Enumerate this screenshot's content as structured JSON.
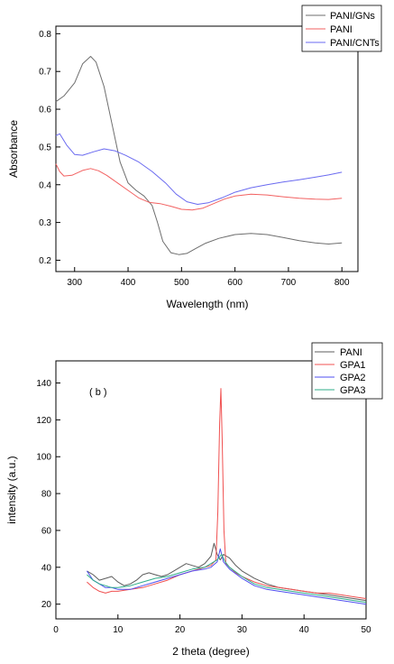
{
  "chart_data": [
    {
      "type": "line",
      "title": "",
      "xlabel": "Wavelength (nm)",
      "ylabel": "Absorbance",
      "xlim": [
        265,
        830
      ],
      "ylim": [
        0.17,
        0.82
      ],
      "x_ticks": [
        300,
        400,
        500,
        600,
        700,
        800
      ],
      "y_ticks": [
        0.2,
        0.3,
        0.4,
        0.5,
        0.6,
        0.7,
        0.8
      ],
      "x_tick_labels": [
        "300",
        "400",
        "500",
        "600",
        "700",
        "800"
      ],
      "y_tick_labels": [
        "0.2",
        "0.3",
        "0.4",
        "0.5",
        "0.6",
        "0.7",
        "0.8"
      ],
      "legend": "top-right",
      "grid": false,
      "series": [
        {
          "name": "PANI/GNs",
          "color": "#6e6e6e",
          "x": [
            265,
            280,
            300,
            315,
            330,
            340,
            355,
            370,
            385,
            400,
            415,
            430,
            445,
            455,
            465,
            480,
            495,
            510,
            525,
            545,
            570,
            600,
            630,
            660,
            690,
            720,
            750,
            775,
            800
          ],
          "y": [
            0.62,
            0.635,
            0.67,
            0.72,
            0.74,
            0.725,
            0.66,
            0.56,
            0.46,
            0.405,
            0.385,
            0.37,
            0.345,
            0.3,
            0.25,
            0.22,
            0.215,
            0.218,
            0.23,
            0.245,
            0.258,
            0.268,
            0.271,
            0.268,
            0.26,
            0.252,
            0.246,
            0.243,
            0.246
          ]
        },
        {
          "name": "PANI",
          "color": "#f26161",
          "x": [
            265,
            272,
            280,
            295,
            315,
            330,
            345,
            360,
            380,
            400,
            420,
            440,
            460,
            480,
            500,
            520,
            540,
            560,
            580,
            600,
            630,
            660,
            690,
            720,
            750,
            775,
            800
          ],
          "y": [
            0.455,
            0.435,
            0.423,
            0.425,
            0.438,
            0.443,
            0.437,
            0.425,
            0.405,
            0.385,
            0.365,
            0.353,
            0.35,
            0.343,
            0.335,
            0.333,
            0.338,
            0.35,
            0.362,
            0.37,
            0.375,
            0.373,
            0.368,
            0.364,
            0.362,
            0.361,
            0.364
          ]
        },
        {
          "name": "PANI/CNTs",
          "color": "#6a6af0",
          "x": [
            265,
            272,
            285,
            300,
            315,
            335,
            355,
            375,
            395,
            420,
            445,
            470,
            490,
            510,
            530,
            550,
            575,
            600,
            630,
            660,
            690,
            720,
            750,
            775,
            800
          ],
          "y": [
            0.53,
            0.535,
            0.505,
            0.48,
            0.478,
            0.487,
            0.495,
            0.49,
            0.478,
            0.46,
            0.435,
            0.405,
            0.375,
            0.355,
            0.348,
            0.352,
            0.365,
            0.38,
            0.392,
            0.4,
            0.407,
            0.413,
            0.42,
            0.426,
            0.433
          ]
        }
      ]
    },
    {
      "type": "line",
      "title": "",
      "annotation": "( b )",
      "xlabel": "2 theta (degree)",
      "ylabel": "intensity (a.u.)",
      "xlim": [
        0,
        50
      ],
      "ylim": [
        12,
        152
      ],
      "x_ticks": [
        0,
        10,
        20,
        30,
        40,
        50
      ],
      "y_ticks": [
        20,
        40,
        60,
        80,
        100,
        120,
        140
      ],
      "x_tick_labels": [
        "0",
        "10",
        "20",
        "30",
        "40",
        "50"
      ],
      "y_tick_labels": [
        "20",
        "40",
        "60",
        "80",
        "100",
        "120",
        "140"
      ],
      "legend": "top-right",
      "grid": false,
      "series": [
        {
          "name": "PANI",
          "color": "#5c5c5c",
          "x": [
            5,
            6,
            7,
            8,
            9,
            10,
            11,
            12,
            13,
            14,
            15,
            16,
            17,
            18,
            19,
            20,
            21,
            22,
            23,
            24,
            25,
            25.5,
            26,
            26.5,
            27,
            27.5,
            28,
            29,
            30,
            32,
            34,
            36,
            38,
            40,
            42,
            44,
            46,
            48,
            50
          ],
          "y": [
            38,
            36,
            33,
            34,
            35,
            32,
            30,
            31,
            33,
            36,
            37,
            36,
            35,
            36,
            38,
            40,
            42,
            41,
            40,
            42,
            46,
            53,
            47,
            44,
            47,
            46,
            45,
            41,
            38,
            34,
            31,
            29,
            28,
            27,
            26,
            25,
            24,
            23,
            22
          ]
        },
        {
          "name": "GPA1",
          "color": "#f05050",
          "x": [
            5,
            6,
            7,
            8,
            9,
            10,
            12,
            14,
            16,
            18,
            20,
            22,
            24,
            25,
            25.8,
            26.1,
            26.4,
            26.6,
            26.8,
            27.1,
            27.4,
            28,
            29,
            30,
            32,
            34,
            36,
            38,
            40,
            42,
            44,
            46,
            48,
            50
          ],
          "y": [
            32,
            29,
            27,
            26,
            27,
            27,
            28,
            29,
            31,
            33,
            36,
            38,
            40,
            41,
            44,
            70,
            118,
            137,
            110,
            60,
            42,
            40,
            37,
            35,
            32,
            30,
            29,
            28,
            27,
            26,
            26,
            25,
            24,
            23
          ]
        },
        {
          "name": "GPA2",
          "color": "#4f4ff0",
          "x": [
            5,
            6,
            7,
            8,
            9,
            10,
            12,
            14,
            16,
            18,
            20,
            22,
            24,
            25,
            26,
            26.5,
            27,
            28,
            30,
            32,
            34,
            36,
            38,
            40,
            42,
            44,
            46,
            48,
            50
          ],
          "y": [
            38,
            33,
            31,
            29,
            29,
            28,
            28,
            30,
            32,
            34,
            36,
            38,
            39,
            40,
            43,
            50,
            43,
            39,
            34,
            30,
            28,
            27,
            26,
            25,
            24,
            23,
            22,
            21,
            20
          ]
        },
        {
          "name": "GPA3",
          "color": "#2fae8a",
          "x": [
            5,
            6,
            7,
            8,
            9,
            10,
            12,
            14,
            16,
            18,
            20,
            22,
            24,
            25,
            26,
            26.7,
            27.3,
            28,
            30,
            32,
            34,
            36,
            38,
            40,
            42,
            44,
            46,
            48,
            50
          ],
          "y": [
            36,
            33,
            31,
            30,
            29,
            29,
            30,
            32,
            34,
            35,
            37,
            39,
            40,
            42,
            44,
            47,
            43,
            40,
            35,
            31,
            29,
            28,
            27,
            26,
            25,
            24,
            23,
            22,
            21
          ]
        }
      ]
    }
  ]
}
